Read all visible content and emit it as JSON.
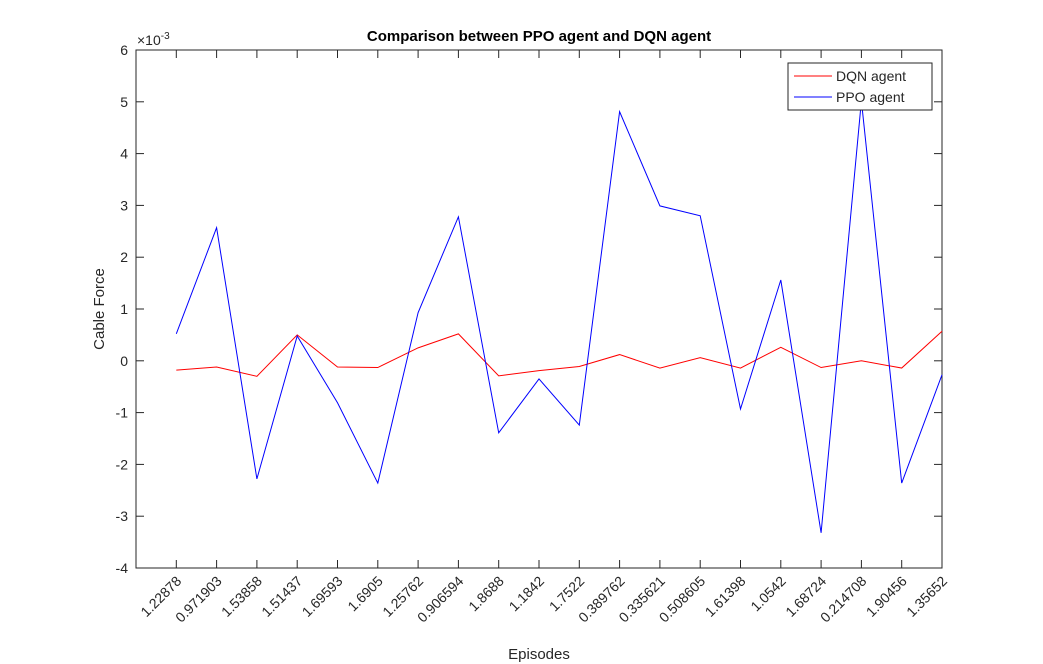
{
  "chart_data": {
    "type": "line",
    "title": "Comparison between PPO agent and DQN agent",
    "xlabel": "Episodes",
    "ylabel": "Cable Force",
    "y_scale_label": {
      "base": "×10",
      "exponent": "-3"
    },
    "categories": [
      "1.22878",
      "0.971903",
      "1.53858",
      "1.51437",
      "1.69593",
      "1.6905",
      "1.25762",
      "0.906594",
      "1.8688",
      "1.1842",
      "1.7522",
      "0.389762",
      "0.335621",
      "0.508605",
      "1.61398",
      "1.0542",
      "1.68724",
      "0.214708",
      "1.90456",
      "1.35652"
    ],
    "series": [
      {
        "name": "DQN agent",
        "color": "#ff0000",
        "values": [
          -0.18,
          -0.12,
          -0.3,
          0.5,
          -0.12,
          -0.13,
          0.25,
          0.52,
          -0.29,
          -0.19,
          -0.11,
          0.12,
          -0.14,
          0.06,
          -0.14,
          0.26,
          -0.13,
          0.0,
          -0.14,
          0.57
        ]
      },
      {
        "name": "PPO agent",
        "color": "#0000ff",
        "values": [
          0.52,
          2.57,
          -2.28,
          0.48,
          -0.81,
          -2.36,
          0.93,
          2.78,
          -1.39,
          -0.35,
          -1.24,
          4.81,
          2.99,
          2.8,
          -0.93,
          1.56,
          -3.32,
          5.02,
          -2.36,
          -0.27
        ]
      }
    ],
    "ylim": [
      -4,
      6
    ],
    "yticks": [
      -4,
      -3,
      -2,
      -1,
      0,
      1,
      2,
      3,
      4,
      5,
      6
    ],
    "grid": false,
    "legend": "upper right"
  }
}
